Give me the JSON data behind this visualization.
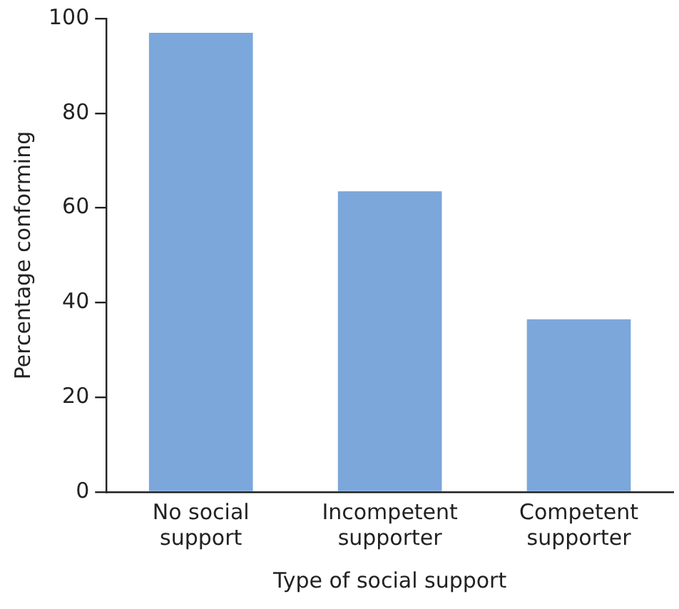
{
  "chart_data": {
    "type": "bar",
    "xlabel": "Type of social support",
    "ylabel": "Percentage conforming",
    "categories": [
      "No social support",
      "Incompetent supporter",
      "Competent supporter"
    ],
    "values": [
      97,
      63.5,
      36.5
    ],
    "color": "#7ba7db",
    "ylim": [
      0,
      100
    ],
    "yticks": [
      0,
      20,
      40,
      60,
      80,
      100
    ],
    "grid": false,
    "legend": false
  }
}
